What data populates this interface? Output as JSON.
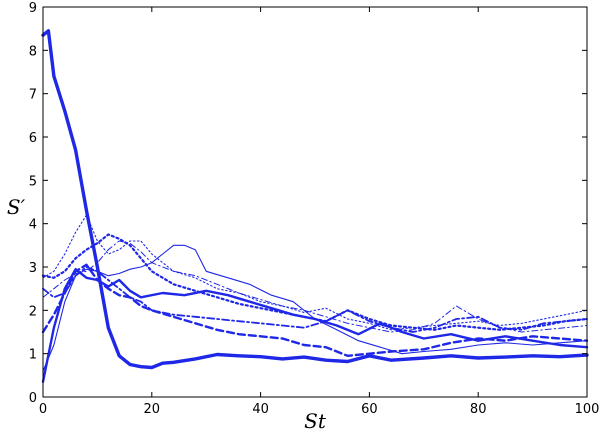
{
  "chart_data": {
    "type": "line",
    "xlabel": "St",
    "ylabel": "S′",
    "xlim": [
      0,
      100
    ],
    "ylim": [
      0,
      9
    ],
    "xticks": [
      "0",
      "20",
      "40",
      "60",
      "80",
      "100"
    ],
    "yticks": [
      "0",
      "1",
      "2",
      "3",
      "4",
      "5",
      "6",
      "7",
      "8",
      "9"
    ],
    "grid": false,
    "legend": "none",
    "color": "#1f28e6",
    "series": [
      {
        "style": "solid-thick",
        "x": [
          0,
          1,
          2,
          4,
          6,
          8,
          10,
          12,
          14,
          16,
          18,
          20,
          22,
          24,
          28,
          32,
          36,
          40,
          44,
          48,
          52,
          56,
          60,
          64,
          70,
          75,
          80,
          85,
          90,
          95,
          100
        ],
        "y": [
          8.35,
          8.45,
          7.4,
          6.6,
          5.7,
          4.3,
          3.0,
          1.6,
          0.95,
          0.75,
          0.7,
          0.68,
          0.78,
          0.8,
          0.88,
          0.98,
          0.95,
          0.93,
          0.88,
          0.92,
          0.85,
          0.82,
          0.95,
          0.85,
          0.9,
          0.95,
          0.9,
          0.92,
          0.95,
          0.93,
          0.97
        ]
      },
      {
        "style": "solid-medium",
        "x": [
          0,
          2,
          4,
          6,
          8,
          10,
          12,
          14,
          16,
          18,
          22,
          26,
          30,
          34,
          38,
          42,
          46,
          50,
          54,
          58,
          62,
          66,
          70,
          75,
          80,
          85,
          90,
          95,
          100
        ],
        "y": [
          0.35,
          1.6,
          2.5,
          2.95,
          2.75,
          2.7,
          2.55,
          2.7,
          2.45,
          2.3,
          2.4,
          2.35,
          2.45,
          2.35,
          2.2,
          2.05,
          1.9,
          1.8,
          1.65,
          1.45,
          1.7,
          1.5,
          1.35,
          1.45,
          1.3,
          1.4,
          1.3,
          1.2,
          1.15
        ]
      },
      {
        "style": "solid-thin",
        "x": [
          0,
          2,
          4,
          6,
          8,
          10,
          12,
          14,
          16,
          18,
          20,
          22,
          24,
          26,
          28,
          30,
          34,
          38,
          42,
          46,
          50,
          54,
          58,
          62,
          66,
          70,
          75,
          80,
          85,
          90,
          95,
          100
        ],
        "y": [
          0.6,
          1.2,
          2.2,
          2.8,
          2.95,
          2.9,
          2.8,
          2.85,
          2.95,
          3.0,
          3.1,
          3.3,
          3.5,
          3.5,
          3.4,
          2.9,
          2.75,
          2.6,
          2.35,
          2.2,
          1.8,
          1.55,
          1.3,
          1.15,
          1.0,
          1.05,
          1.1,
          1.2,
          1.25,
          1.2,
          1.25,
          1.3
        ]
      },
      {
        "style": "dashed-thick",
        "x": [
          0,
          2,
          4,
          6,
          8,
          10,
          12,
          14,
          16,
          18,
          20,
          24,
          28,
          32,
          36,
          40,
          44,
          48,
          52,
          56,
          60,
          64,
          70,
          75,
          80,
          85,
          90,
          95,
          100
        ],
        "y": [
          1.5,
          1.9,
          2.4,
          2.9,
          3.05,
          2.7,
          2.5,
          2.35,
          2.3,
          2.1,
          2.0,
          1.85,
          1.7,
          1.55,
          1.45,
          1.4,
          1.35,
          1.2,
          1.15,
          0.95,
          1.0,
          1.05,
          1.1,
          1.25,
          1.35,
          1.3,
          1.4,
          1.35,
          1.3
        ]
      },
      {
        "style": "dashdot",
        "x": [
          0,
          2,
          4,
          6,
          8,
          10,
          12,
          14,
          16,
          18,
          20,
          24,
          28,
          32,
          36,
          40,
          44,
          48,
          52,
          56,
          60,
          64,
          68,
          72,
          76,
          80,
          84,
          88,
          92,
          96,
          100
        ],
        "y": [
          2.5,
          2.3,
          2.4,
          2.8,
          3.0,
          2.9,
          2.7,
          2.5,
          2.3,
          2.2,
          2.0,
          1.9,
          1.85,
          1.8,
          1.75,
          1.7,
          1.65,
          1.6,
          1.75,
          2.0,
          1.75,
          1.6,
          1.5,
          1.6,
          1.8,
          1.85,
          1.6,
          1.55,
          1.7,
          1.75,
          1.8
        ]
      },
      {
        "style": "dotted-thick",
        "x": [
          0,
          2,
          4,
          6,
          8,
          10,
          12,
          14,
          16,
          18,
          20,
          24,
          28,
          32,
          36,
          40,
          44,
          48,
          52,
          56,
          60,
          64,
          68,
          72,
          76,
          80,
          84,
          88,
          92,
          96,
          100
        ],
        "y": [
          2.8,
          2.75,
          2.9,
          3.2,
          3.4,
          3.55,
          3.75,
          3.65,
          3.5,
          3.2,
          2.9,
          2.6,
          2.45,
          2.3,
          2.15,
          2.05,
          1.95,
          1.85,
          1.75,
          2.0,
          1.8,
          1.65,
          1.6,
          1.55,
          1.65,
          1.6,
          1.55,
          1.6,
          1.65,
          1.75,
          1.8
        ]
      },
      {
        "style": "dotted-thin",
        "x": [
          0,
          2,
          4,
          6,
          8,
          10,
          12,
          14,
          16,
          18,
          20,
          24,
          28,
          32,
          36,
          40,
          44,
          48,
          52,
          56,
          60,
          64,
          68,
          72,
          76,
          80,
          84,
          88,
          92,
          96,
          100
        ],
        "y": [
          2.75,
          2.9,
          3.3,
          3.8,
          4.2,
          3.6,
          3.3,
          3.4,
          3.6,
          3.6,
          3.3,
          2.9,
          2.75,
          2.5,
          2.4,
          2.2,
          2.1,
          1.95,
          2.05,
          1.8,
          1.7,
          1.55,
          1.6,
          1.65,
          1.7,
          1.75,
          1.65,
          1.7,
          1.8,
          1.9,
          2.0
        ]
      },
      {
        "style": "dashdot-thin",
        "x": [
          0,
          2,
          4,
          6,
          8,
          10,
          12,
          14,
          16,
          18,
          20,
          24,
          28,
          32,
          36,
          40,
          44,
          48,
          52,
          56,
          60,
          64,
          68,
          72,
          76,
          80,
          84,
          88,
          92,
          96,
          100
        ],
        "y": [
          2.3,
          2.5,
          2.7,
          2.85,
          2.9,
          3.1,
          3.4,
          3.6,
          3.55,
          3.35,
          3.1,
          2.9,
          2.8,
          2.6,
          2.4,
          2.25,
          2.1,
          2.0,
          1.85,
          1.7,
          1.6,
          1.5,
          1.55,
          1.7,
          2.1,
          1.8,
          1.6,
          1.5,
          1.55,
          1.6,
          1.65
        ]
      }
    ]
  }
}
